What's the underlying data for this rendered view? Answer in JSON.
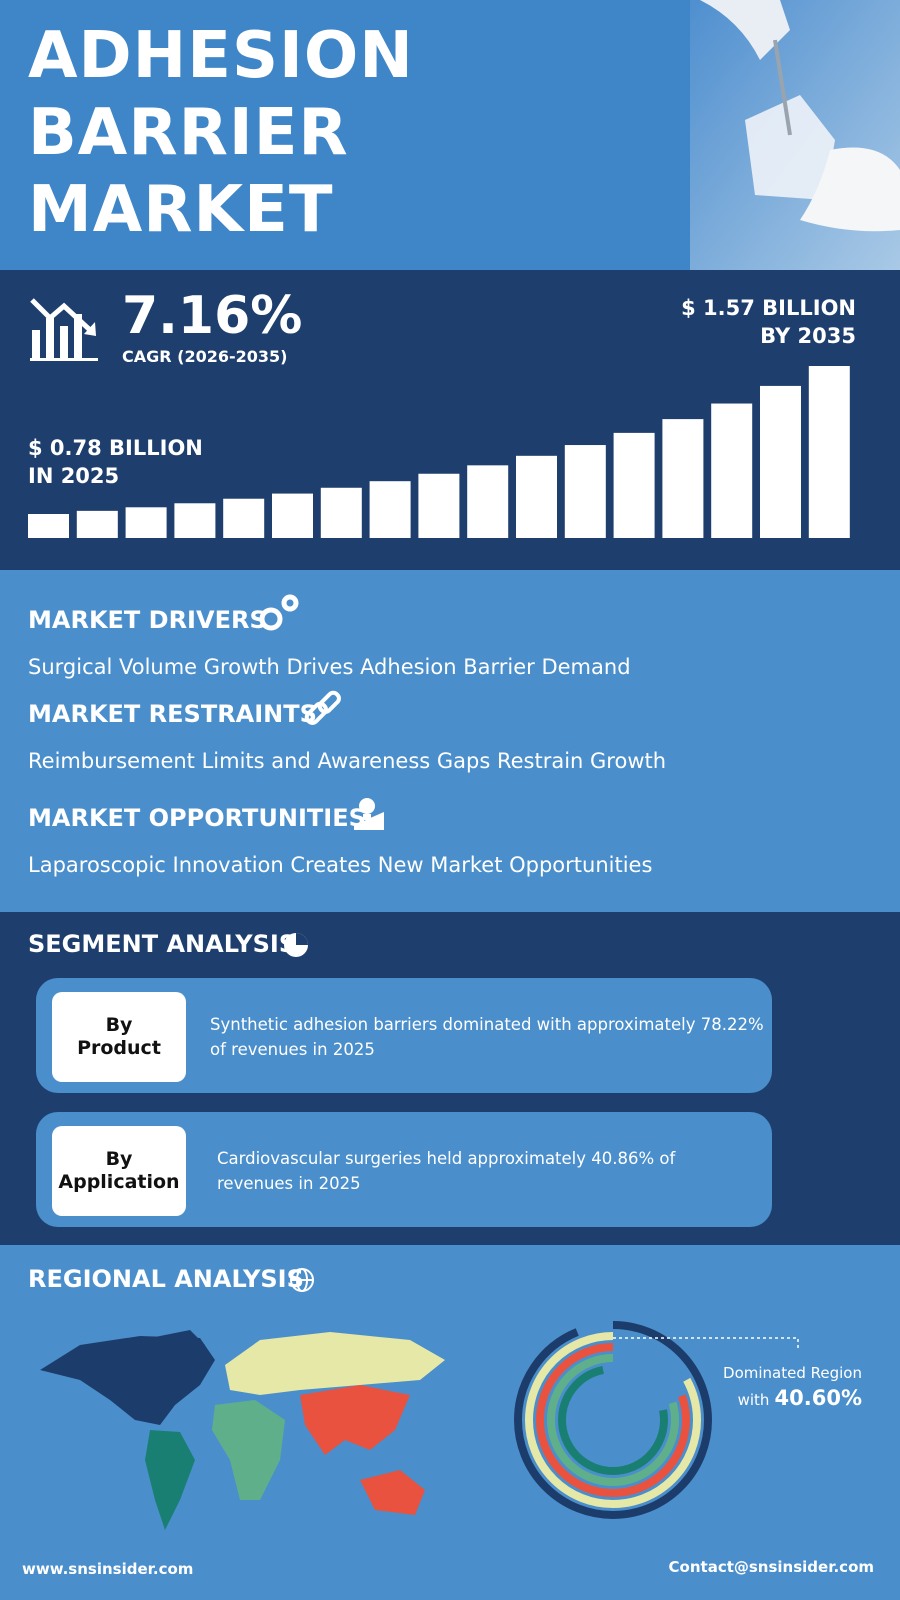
{
  "header": {
    "title_lines": [
      "ADHESION",
      "BARRIER",
      "MARKET"
    ]
  },
  "growth": {
    "cagr": "7.16%",
    "cagr_period": "CAGR (2026-2035)",
    "end_value": "$ 1.57 BILLION",
    "end_year": "BY 2035",
    "start_value": "$ 0.78 BILLION",
    "start_year": "IN 2025"
  },
  "market": {
    "drivers": {
      "heading": "MARKET DRIVERS",
      "text": "Surgical Volume Growth Drives Adhesion Barrier Demand"
    },
    "restraints": {
      "heading": "MARKET RESTRAINTS",
      "text": "Reimbursement Limits and Awareness Gaps Restrain Growth"
    },
    "opportunities": {
      "heading": "MARKET OPPORTUNITIES",
      "text": "Laparoscopic Innovation Creates New Market Opportunities"
    }
  },
  "segments": {
    "heading": "SEGMENT ANALYSIS",
    "items": [
      {
        "label_lines": [
          "By",
          "Product"
        ],
        "text": "Synthetic adhesion barriers dominated with approximately 78.22% of revenues in 2025"
      },
      {
        "label_lines": [
          "By",
          "Application"
        ],
        "text": "Cardiovascular surgeries held approximately 40.86% of revenues in 2025"
      }
    ]
  },
  "regional": {
    "heading": "REGIONAL ANALYSIS",
    "note": "Dominated Region",
    "share_prefix": "with",
    "share": "40.60%"
  },
  "footer": {
    "website": "www.snsinsider.com",
    "contact": "Contact@snsinsider.com"
  }
}
